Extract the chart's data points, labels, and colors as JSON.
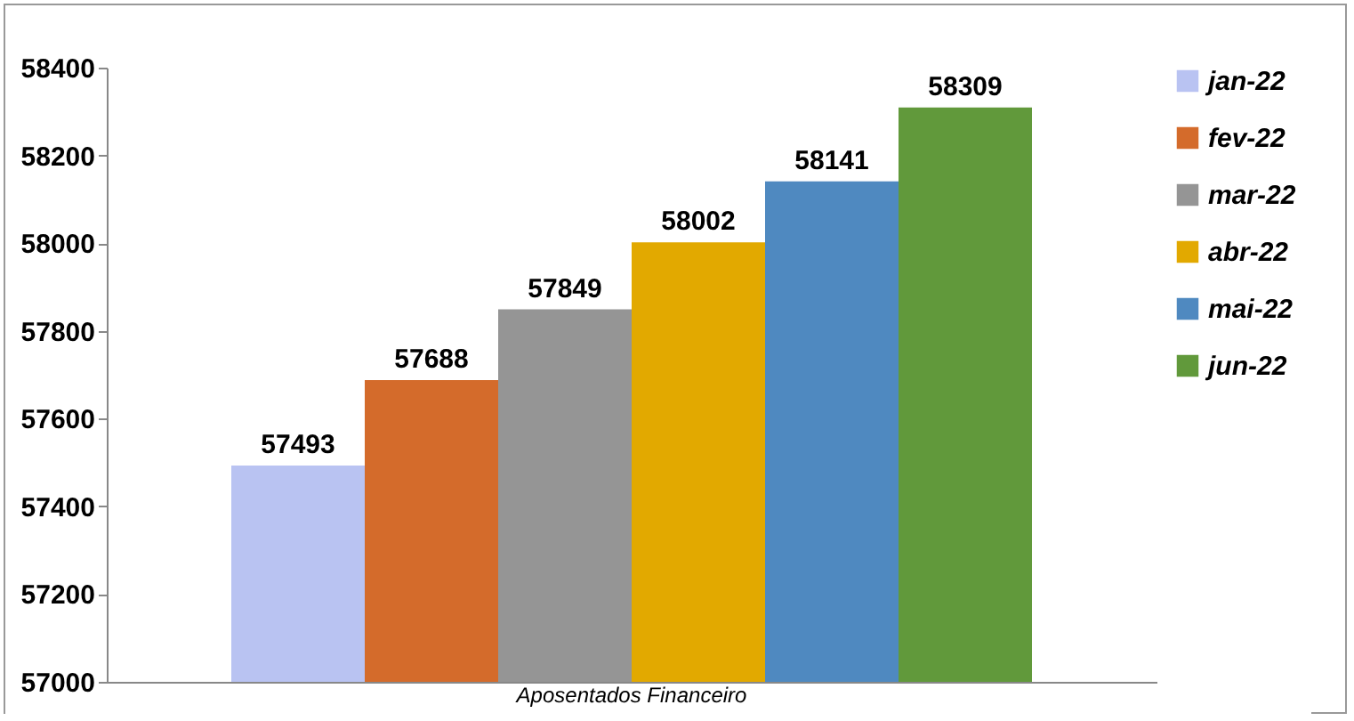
{
  "chart_data": {
    "type": "bar",
    "categories": [
      "Aposentados Financeiro"
    ],
    "series": [
      {
        "name": "jan-22",
        "color": "#b9c3f2",
        "values": [
          57493
        ]
      },
      {
        "name": "fev-22",
        "color": "#d46b2b",
        "values": [
          57688
        ]
      },
      {
        "name": "mar-22",
        "color": "#959595",
        "values": [
          57849
        ]
      },
      {
        "name": "abr-22",
        "color": "#e2a900",
        "values": [
          58002
        ]
      },
      {
        "name": "mai-22",
        "color": "#4f89c0",
        "values": [
          58141
        ]
      },
      {
        "name": "jun-22",
        "color": "#61993b",
        "values": [
          58309
        ]
      }
    ],
    "ylim": [
      57000,
      58400
    ],
    "yticks": [
      57000,
      57200,
      57400,
      57600,
      57800,
      58000,
      58200,
      58400
    ],
    "data_labels": true,
    "legend": "right",
    "grid": false
  }
}
